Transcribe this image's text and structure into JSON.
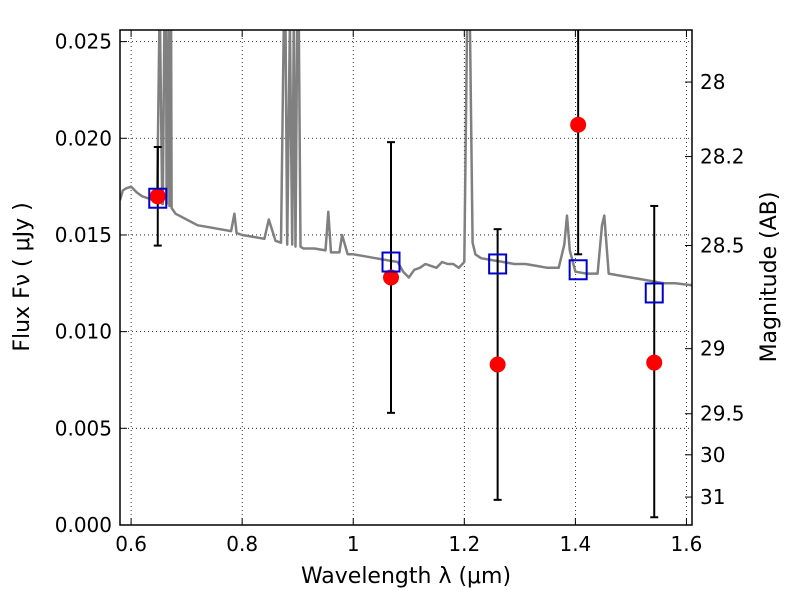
{
  "chart_data": {
    "type": "scatter",
    "title": "",
    "xlabel": "Wavelength  λ (μm)",
    "ylabel": "Flux  Fν  ( μJy )",
    "ylabel_right": "Magnitude (AB)",
    "xlim": [
      0.58,
      1.61
    ],
    "ylim": [
      0.0,
      0.0256
    ],
    "grid": true,
    "x_ticks": [
      0.6,
      0.8,
      1.0,
      1.2,
      1.4,
      1.6
    ],
    "x_tick_labels": [
      "0.6",
      "0.8",
      "1",
      "1.2",
      "1.4",
      "1.6"
    ],
    "y_ticks": [
      0.0,
      0.005,
      0.01,
      0.015,
      0.02,
      0.025
    ],
    "y_tick_labels": [
      "0.000",
      "0.005",
      "0.010",
      "0.015",
      "0.020",
      "0.025"
    ],
    "right_ticks": [
      28,
      28.2,
      28.5,
      29,
      29.5,
      30,
      31
    ],
    "right_tick_labels": [
      "28",
      "28.2",
      "28.5",
      "29",
      "29.5",
      "30",
      "31"
    ],
    "colors": {
      "spectrum": "#808080",
      "observed": "#ff0000",
      "model": "#0000cc",
      "errorbar": "#000000"
    },
    "series": [
      {
        "kind": "line",
        "x": [
          0.58,
          0.585,
          0.59,
          0.6,
          0.61,
          0.62,
          0.63,
          0.64,
          0.647,
          0.651,
          0.652,
          0.656,
          0.657,
          0.66,
          0.663,
          0.664,
          0.668,
          0.669,
          0.672,
          0.673,
          0.68,
          0.7,
          0.72,
          0.74,
          0.76,
          0.78,
          0.786,
          0.79,
          0.8,
          0.82,
          0.84,
          0.848,
          0.86,
          0.87,
          0.875,
          0.878,
          0.881,
          0.886,
          0.89,
          0.893,
          0.896,
          0.899,
          0.902,
          0.905,
          0.91,
          0.93,
          0.95,
          0.955,
          0.96,
          0.975,
          0.98,
          0.99,
          1.0,
          1.02,
          1.04,
          1.06,
          1.08,
          1.09,
          1.1,
          1.11,
          1.12,
          1.13,
          1.14,
          1.15,
          1.16,
          1.17,
          1.18,
          1.19,
          1.2,
          1.205,
          1.21,
          1.215,
          1.22,
          1.23,
          1.25,
          1.27,
          1.29,
          1.31,
          1.33,
          1.35,
          1.37,
          1.38,
          1.385,
          1.39,
          1.4,
          1.42,
          1.44,
          1.448,
          1.452,
          1.46,
          1.48,
          1.5,
          1.52,
          1.54,
          1.56,
          1.58,
          1.61
        ],
        "y": [
          0.0168,
          0.0173,
          0.0174,
          0.0175,
          0.0172,
          0.017,
          0.0169,
          0.0168,
          0.0169,
          0.026,
          0.026,
          0.0166,
          0.0166,
          0.026,
          0.026,
          0.0166,
          0.026,
          0.0165,
          0.026,
          0.0164,
          0.0161,
          0.0158,
          0.0155,
          0.0154,
          0.0153,
          0.0152,
          0.0161,
          0.0151,
          0.015,
          0.0149,
          0.0148,
          0.0158,
          0.0147,
          0.0146,
          0.026,
          0.026,
          0.0145,
          0.026,
          0.0145,
          0.026,
          0.0144,
          0.026,
          0.026,
          0.0144,
          0.0143,
          0.0143,
          0.0142,
          0.0162,
          0.0141,
          0.0141,
          0.015,
          0.014,
          0.014,
          0.0139,
          0.0138,
          0.0137,
          0.0136,
          0.0131,
          0.0128,
          0.0132,
          0.0133,
          0.0135,
          0.0134,
          0.0133,
          0.0136,
          0.0135,
          0.0135,
          0.0133,
          0.0136,
          0.026,
          0.026,
          0.0146,
          0.014,
          0.0138,
          0.0137,
          0.0136,
          0.0135,
          0.0135,
          0.0134,
          0.0133,
          0.0133,
          0.0145,
          0.016,
          0.0142,
          0.0131,
          0.013,
          0.013,
          0.0155,
          0.016,
          0.013,
          0.0129,
          0.0128,
          0.0127,
          0.0126,
          0.0125,
          0.0125,
          0.0124
        ]
      },
      {
        "kind": "points_with_errors",
        "x": [
          0.648,
          1.068,
          1.26,
          1.405,
          1.542
        ],
        "y": [
          0.017,
          0.0128,
          0.0083,
          0.0207,
          0.0084
        ],
        "yerr_low": [
          0.00255,
          0.007,
          0.007,
          0.0067,
          0.008
        ],
        "yerr_high": [
          0.00255,
          0.007,
          0.007,
          0.0093,
          0.0081
        ]
      },
      {
        "kind": "open_squares",
        "x": [
          0.648,
          1.068,
          1.26,
          1.405,
          1.542
        ],
        "y": [
          0.0169,
          0.0136,
          0.0135,
          0.0132,
          0.012
        ]
      }
    ]
  }
}
